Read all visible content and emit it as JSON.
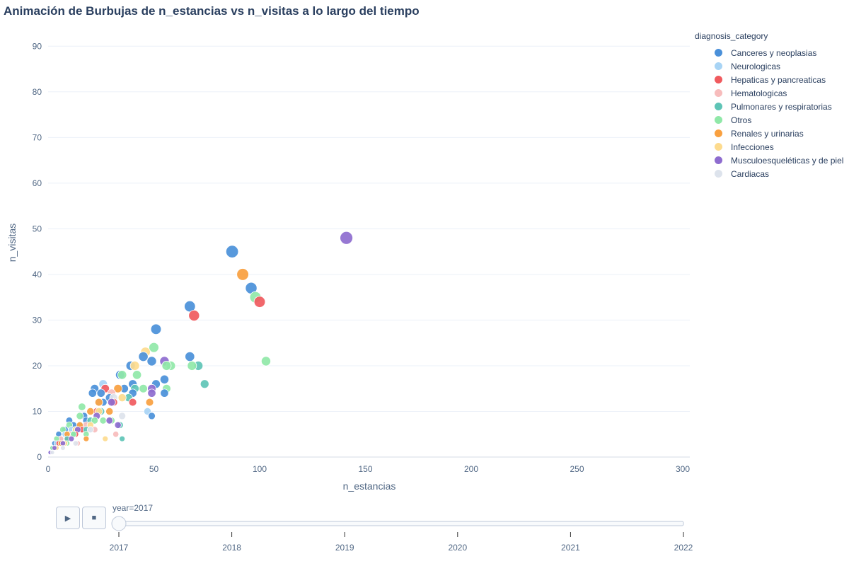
{
  "chart_data": {
    "type": "scatter",
    "title": "Animación de Burbujas de n_estancias vs n_visitas a lo largo del tiempo",
    "xlabel": "n_estancias",
    "ylabel": "n_visitas",
    "xlim": [
      0,
      300
    ],
    "ylim": [
      0,
      95
    ],
    "xticks": [
      0,
      50,
      100,
      150,
      200,
      250,
      300
    ],
    "yticks": [
      0,
      10,
      20,
      30,
      40,
      50,
      60,
      70,
      80,
      90
    ],
    "grid": true,
    "legend": {
      "title": "diagnosis_category",
      "position": "right"
    },
    "series": [
      {
        "name": "Canceres y neoplasias",
        "color": "#4a90d9",
        "points": [
          [
            87,
            45
          ],
          [
            96,
            37
          ],
          [
            67,
            33
          ],
          [
            51,
            28
          ],
          [
            45,
            22
          ],
          [
            49,
            21
          ],
          [
            67,
            22
          ],
          [
            55,
            17
          ],
          [
            51,
            16
          ],
          [
            40,
            16
          ],
          [
            39,
            20
          ],
          [
            34,
            18
          ],
          [
            36,
            15
          ],
          [
            40,
            14
          ],
          [
            55,
            14
          ],
          [
            22,
            15
          ],
          [
            25,
            14
          ],
          [
            21,
            14
          ],
          [
            29,
            13
          ],
          [
            49,
            9
          ],
          [
            26,
            12
          ],
          [
            17,
            9
          ],
          [
            10,
            8
          ],
          [
            12,
            7
          ],
          [
            18,
            8
          ],
          [
            14,
            6
          ],
          [
            8,
            6
          ],
          [
            5,
            5
          ],
          [
            3,
            3
          ],
          [
            2,
            2
          ],
          [
            1,
            1
          ]
        ]
      },
      {
        "name": "Neurologicas",
        "color": "#a8d4f5",
        "points": [
          [
            26,
            16
          ],
          [
            47,
            10
          ],
          [
            24,
            12
          ],
          [
            11,
            6
          ],
          [
            15,
            7
          ],
          [
            20,
            6
          ],
          [
            8,
            5
          ],
          [
            6,
            4
          ],
          [
            4,
            3
          ],
          [
            3,
            2
          ]
        ]
      },
      {
        "name": "Hepaticas y pancreaticas",
        "color": "#f05a5e",
        "points": [
          [
            100,
            34
          ],
          [
            69,
            31
          ],
          [
            27,
            15
          ],
          [
            40,
            12
          ],
          [
            23,
            10
          ],
          [
            31,
            12
          ],
          [
            13,
            5
          ],
          [
            9,
            4
          ],
          [
            16,
            6
          ],
          [
            5,
            3
          ]
        ]
      },
      {
        "name": "Hematologicas",
        "color": "#f7bcbc",
        "points": [
          [
            30,
            14
          ],
          [
            32,
            5
          ],
          [
            18,
            7
          ],
          [
            11,
            5
          ],
          [
            6,
            4
          ],
          [
            4,
            2
          ],
          [
            14,
            3
          ],
          [
            22,
            6
          ]
        ]
      },
      {
        "name": "Pulmonares y respiratorias",
        "color": "#5ec4b6",
        "points": [
          [
            71,
            20
          ],
          [
            74,
            16
          ],
          [
            38,
            13
          ],
          [
            41,
            15
          ],
          [
            34,
            7
          ],
          [
            35,
            4
          ],
          [
            20,
            8
          ],
          [
            25,
            10
          ],
          [
            18,
            6
          ],
          [
            12,
            5
          ],
          [
            9,
            4
          ],
          [
            6,
            3
          ],
          [
            3,
            2
          ]
        ]
      },
      {
        "name": "Otros",
        "color": "#90e8a8",
        "points": [
          [
            98,
            35
          ],
          [
            103,
            21
          ],
          [
            50,
            24
          ],
          [
            58,
            20
          ],
          [
            68,
            20
          ],
          [
            56,
            20
          ],
          [
            42,
            18
          ],
          [
            45,
            15
          ],
          [
            56,
            15
          ],
          [
            35,
            18
          ],
          [
            16,
            11
          ],
          [
            15,
            9
          ],
          [
            22,
            8
          ],
          [
            26,
            8
          ],
          [
            30,
            8
          ],
          [
            10,
            7
          ],
          [
            7,
            6
          ],
          [
            12,
            5
          ],
          [
            18,
            5
          ],
          [
            4,
            4
          ],
          [
            9,
            3
          ],
          [
            2,
            2
          ]
        ]
      },
      {
        "name": "Renales y urinarias",
        "color": "#f9a03f",
        "points": [
          [
            92,
            40
          ],
          [
            48,
            12
          ],
          [
            33,
            15
          ],
          [
            20,
            10
          ],
          [
            24,
            12
          ],
          [
            29,
            10
          ],
          [
            15,
            7
          ],
          [
            9,
            5
          ],
          [
            6,
            3
          ],
          [
            18,
            4
          ]
        ]
      },
      {
        "name": "Infecciones",
        "color": "#fddb8e",
        "points": [
          [
            46,
            23
          ],
          [
            41,
            20
          ],
          [
            35,
            13
          ],
          [
            24,
            10
          ],
          [
            20,
            7
          ],
          [
            13,
            6
          ],
          [
            27,
            4
          ],
          [
            8,
            3
          ],
          [
            4,
            2
          ]
        ]
      },
      {
        "name": "Musculoesqueléticas y de piel",
        "color": "#8e6ccf",
        "points": [
          [
            141,
            48
          ],
          [
            55,
            21
          ],
          [
            49,
            15
          ],
          [
            49,
            14
          ],
          [
            30,
            12
          ],
          [
            29,
            8
          ],
          [
            33,
            7
          ],
          [
            23,
            9
          ],
          [
            14,
            6
          ],
          [
            11,
            4
          ],
          [
            7,
            3
          ],
          [
            3,
            2
          ],
          [
            1,
            1
          ]
        ]
      },
      {
        "name": "Cardiacas",
        "color": "#dde3ec",
        "points": [
          [
            35,
            9
          ],
          [
            31,
            13
          ],
          [
            20,
            6
          ],
          [
            13,
            3
          ],
          [
            7,
            2
          ],
          [
            2,
            1
          ]
        ]
      }
    ]
  },
  "animation": {
    "play_label": "▶",
    "stop_label": "■",
    "slider_prefix": "year=",
    "current_year": "2017",
    "years": [
      "2017",
      "2018",
      "2019",
      "2020",
      "2021",
      "2022"
    ]
  }
}
